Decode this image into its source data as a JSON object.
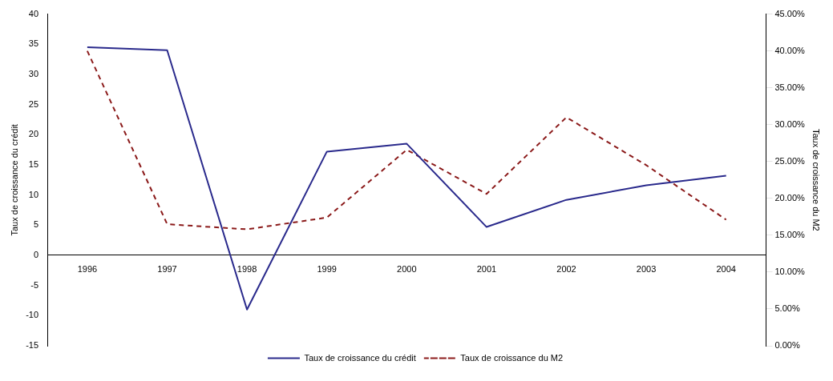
{
  "chart_data": {
    "type": "line",
    "ylabel": "Taux de croissance du crédit",
    "y2label": "Taux de croissance du M2",
    "categories": [
      "1996",
      "1997",
      "1998",
      "1999",
      "2000",
      "2001",
      "2002",
      "2003",
      "2004"
    ],
    "series": [
      {
        "name": "Taux de croissance du crédit",
        "color": "#2a2a8c",
        "line_style": "solid",
        "values": [
          34.5,
          34,
          -9,
          17.2,
          18.5,
          4.7,
          9.2,
          11.6,
          13.2
        ]
      },
      {
        "name": "Taux de croissance du M2",
        "color": "#8b1a1a",
        "line_style": "dashed",
        "axis": "y2",
        "values": [
          40,
          16.5,
          15.8,
          17.4,
          26.6,
          20.6,
          31,
          24.5,
          17.1
        ]
      }
    ],
    "ylim": [
      -15,
      40
    ],
    "yticks": [
      -15,
      -10,
      -5,
      0,
      5,
      10,
      15,
      20,
      25,
      30,
      35,
      40
    ],
    "y2lim": [
      0,
      45
    ],
    "y2ticks": [
      {
        "value": 0,
        "label": "0.00%"
      },
      {
        "value": 5,
        "label": "5.00%"
      },
      {
        "value": 10,
        "label": "10.00%"
      },
      {
        "value": 15,
        "label": "15.00%"
      },
      {
        "value": 20,
        "label": "20.00%"
      },
      {
        "value": 25,
        "label": "25.00%"
      },
      {
        "value": 30,
        "label": "30.00%"
      },
      {
        "value": 35,
        "label": "35.00%"
      },
      {
        "value": 40,
        "label": "40.00%"
      },
      {
        "value": 45,
        "label": "45.00%"
      }
    ],
    "grid": false,
    "legend": "bottom",
    "marker": "none"
  }
}
